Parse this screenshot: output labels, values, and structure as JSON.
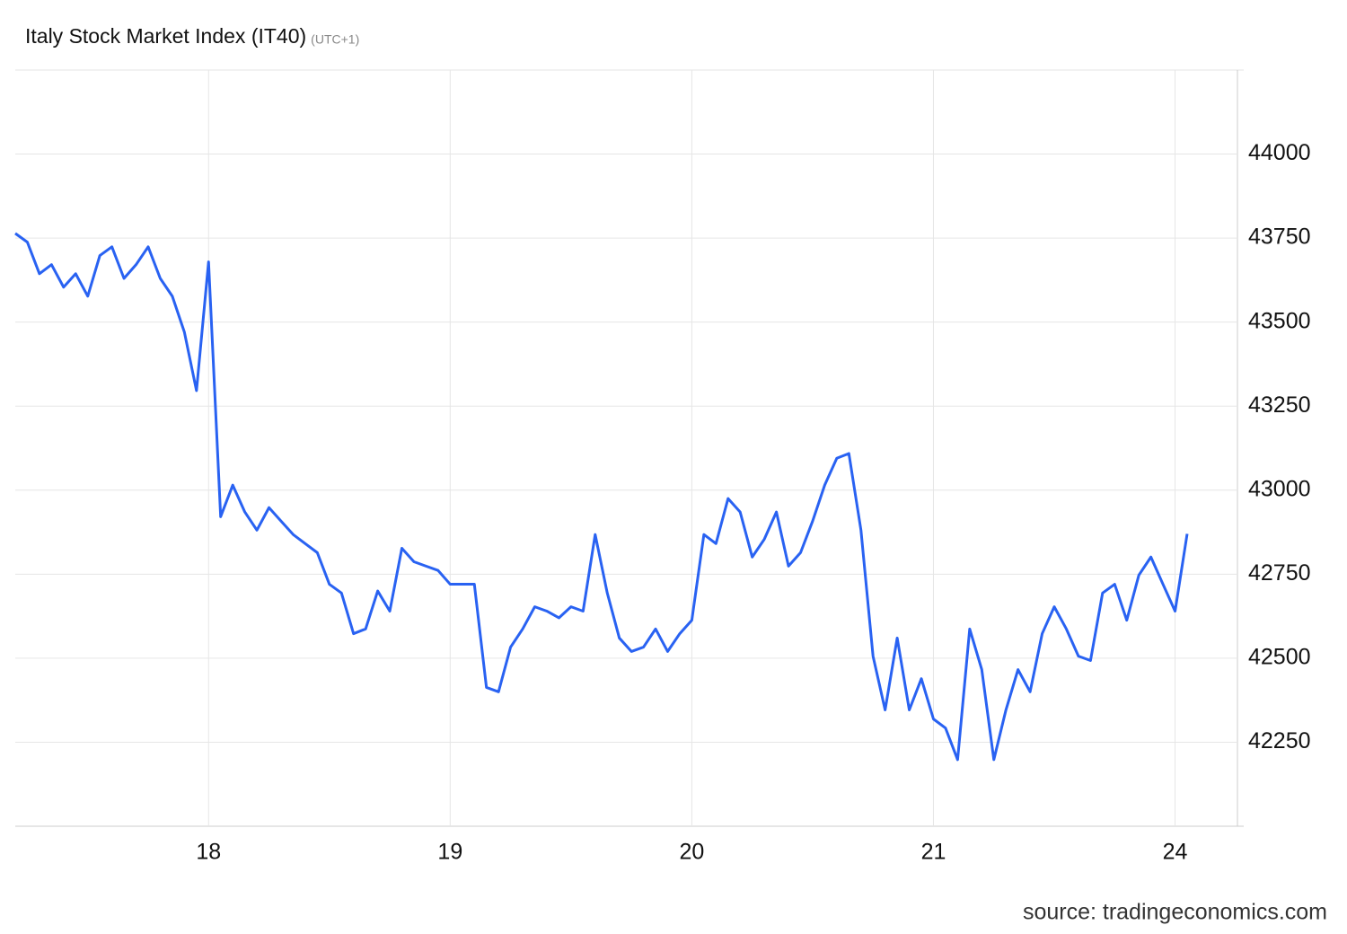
{
  "chart_data": {
    "type": "line",
    "title": "Italy Stock Market Index (IT40)",
    "subtitle": "(UTC+1)",
    "source": "source: tradingeconomics.com",
    "categories": [
      null,
      null,
      null,
      null,
      null,
      null,
      null,
      null,
      null,
      null,
      null,
      null,
      null,
      null,
      null,
      null,
      "18",
      null,
      null,
      null,
      null,
      null,
      null,
      null,
      null,
      null,
      null,
      null,
      null,
      null,
      null,
      null,
      null,
      null,
      null,
      null,
      "19",
      null,
      null,
      null,
      null,
      null,
      null,
      null,
      null,
      null,
      null,
      null,
      null,
      null,
      null,
      null,
      null,
      null,
      null,
      null,
      "20",
      null,
      null,
      null,
      null,
      null,
      null,
      null,
      null,
      null,
      null,
      null,
      null,
      null,
      null,
      null,
      null,
      null,
      null,
      null,
      "21",
      null,
      null,
      null,
      null,
      null,
      null,
      null,
      null,
      null,
      null,
      null,
      null,
      null,
      null,
      null,
      null,
      null,
      null,
      null,
      "24",
      null
    ],
    "series": [
      {
        "name": "IT40",
        "color": "#2962f2",
        "values": [
          43764,
          43738,
          43644,
          43671,
          43604,
          43644,
          43577,
          43698,
          43724,
          43630,
          43671,
          43724,
          43630,
          43577,
          43470,
          43296,
          43679,
          42921,
          43015,
          42935,
          42881,
          42948,
          42908,
          42868,
          42841,
          42814,
          42720,
          42694,
          42573,
          42587,
          42700,
          42640,
          42827,
          42787,
          42774,
          42761,
          42720,
          42720,
          42720,
          42413,
          42400,
          42533,
          42587,
          42653,
          42640,
          42620,
          42653,
          42640,
          42868,
          42694,
          42560,
          42520,
          42533,
          42587,
          42520,
          42573,
          42613,
          42868,
          42841,
          42975,
          42935,
          42801,
          42854,
          42935,
          42774,
          42814,
          42908,
          43015,
          43095,
          43109,
          42881,
          42506,
          42346,
          42560,
          42346,
          42439,
          42319,
          42292,
          42198,
          42587,
          42466,
          42198,
          42346,
          42466,
          42400,
          42573,
          42653,
          42587,
          42506,
          42493,
          42694,
          42720,
          42613,
          42747,
          42801,
          42720,
          42640,
          42870
        ]
      }
    ],
    "ylim": [
      42000,
      44250
    ],
    "yticks": [
      42250,
      42500,
      42750,
      43000,
      43250,
      43500,
      43750,
      44000
    ],
    "grid": true
  }
}
